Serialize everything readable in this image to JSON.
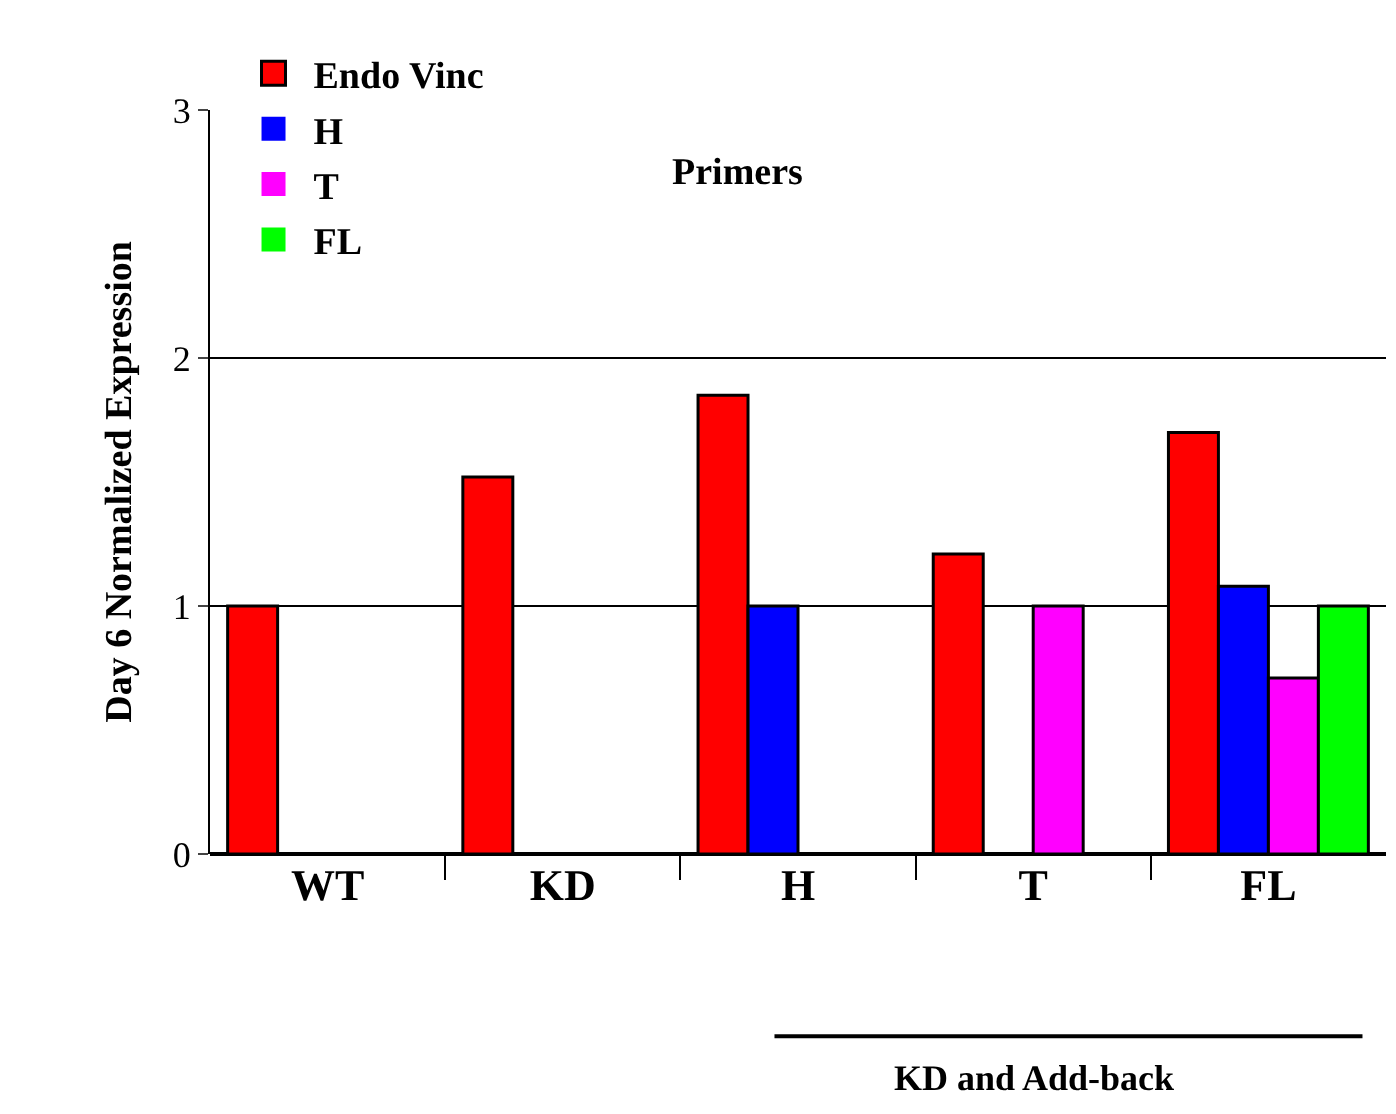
{
  "chart_data": {
    "type": "bar",
    "ylabel": "Day 6 Normalized Expression",
    "legend_title": "Primers",
    "categories": [
      "WT",
      "KD",
      "H",
      "T",
      "FL"
    ],
    "series": [
      {
        "name": "Endo Vinc",
        "color": "#ff0000",
        "values": [
          1.0,
          1.52,
          1.85,
          1.21,
          1.7
        ]
      },
      {
        "name": "H",
        "color": "#0000ff",
        "values": [
          0,
          0,
          1.0,
          0,
          1.08
        ]
      },
      {
        "name": "T",
        "color": "#ff00ff",
        "values": [
          0,
          0,
          0,
          1.0,
          0.71
        ]
      },
      {
        "name": "FL",
        "color": "#00ff00",
        "values": [
          0,
          0,
          0,
          0,
          1.0
        ]
      }
    ],
    "ylim": [
      0,
      3
    ],
    "yticks": [
      0,
      1,
      2,
      3
    ],
    "grid": "y",
    "legend": "top left",
    "annotations": [
      "KD and Add-back"
    ]
  }
}
